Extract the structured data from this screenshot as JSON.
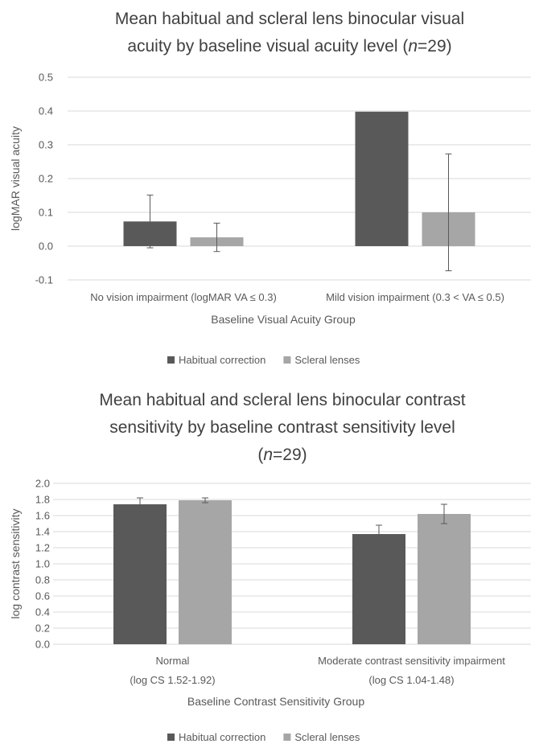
{
  "colors": {
    "habitual": "#595959",
    "scleral": "#a6a6a6",
    "gridline": "#d9d9d9",
    "text": "#595959",
    "title": "#404040"
  },
  "chart_data": [
    {
      "type": "bar",
      "title_lines": [
        [
          {
            "text": "Mean habitual and scleral lens binocular visual"
          }
        ],
        [
          {
            "text": "acuity by baseline visual acuity level ("
          },
          {
            "text": "n",
            "italic": true
          },
          {
            "text": "=29)"
          }
        ]
      ],
      "ylabel": "logMAR visual acuity",
      "xlabel": "Baseline Visual Acuity Group",
      "ylim": [
        -0.1,
        0.5
      ],
      "yticks": [
        "-0.1",
        "0.0",
        "0.1",
        "0.2",
        "0.3",
        "0.4",
        "0.5"
      ],
      "grid": true,
      "legend_position": "bottom",
      "categories": [
        [
          "No vision impairment (logMAR VA ≤ 0.3)"
        ],
        [
          "Mild vision impairment (0.3 < VA ≤ 0.5)"
        ]
      ],
      "series": [
        {
          "name": "Habitual correction",
          "color_key": "habitual",
          "values": [
            0.073,
            0.398
          ],
          "error": [
            0.078,
            0.0
          ]
        },
        {
          "name": "Scleral lenses",
          "color_key": "scleral",
          "values": [
            0.026,
            0.1
          ],
          "error": [
            0.042,
            0.173
          ]
        }
      ]
    },
    {
      "type": "bar",
      "title_lines": [
        [
          {
            "text": "Mean habitual and scleral lens binocular contrast"
          }
        ],
        [
          {
            "text": "sensitivity by baseline contrast sensitivity level"
          }
        ],
        [
          {
            "text": "("
          },
          {
            "text": "n",
            "italic": true
          },
          {
            "text": "=29)"
          }
        ]
      ],
      "ylabel": "log contrast sensitivity",
      "xlabel": "Baseline Contrast Sensitivity Group",
      "ylim": [
        0.0,
        2.0
      ],
      "yticks": [
        "0.0",
        "0.2",
        "0.4",
        "0.6",
        "0.8",
        "1.0",
        "1.2",
        "1.4",
        "1.6",
        "1.8",
        "2.0"
      ],
      "grid": true,
      "legend_position": "bottom",
      "categories": [
        [
          "Normal",
          "(log CS 1.52-1.92)"
        ],
        [
          "Moderate contrast sensitivity impairment",
          "(log CS 1.04-1.48)"
        ]
      ],
      "series": [
        {
          "name": "Habitual correction",
          "color_key": "habitual",
          "values": [
            1.74,
            1.37
          ],
          "error": [
            0.08,
            0.11
          ]
        },
        {
          "name": "Scleral lenses",
          "color_key": "scleral",
          "values": [
            1.79,
            1.62
          ],
          "error": [
            0.03,
            0.12
          ]
        }
      ]
    }
  ]
}
